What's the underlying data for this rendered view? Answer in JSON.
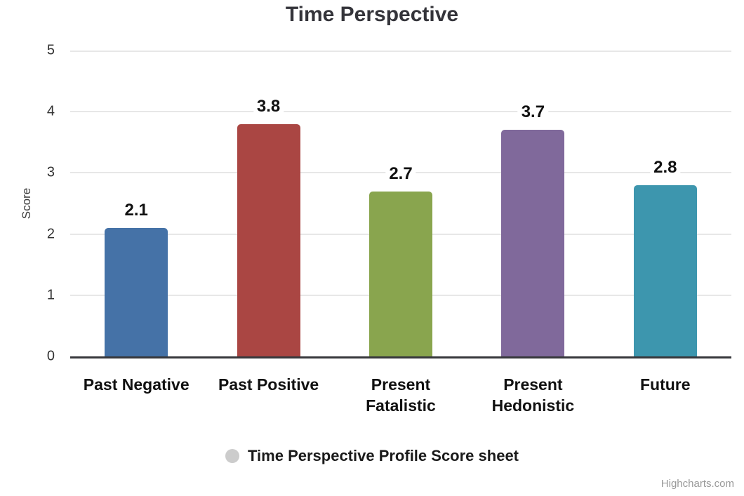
{
  "chart_data": {
    "type": "bar",
    "title": "Time Perspective",
    "ylabel": "Score",
    "xlabel": "",
    "ylim": [
      0,
      5
    ],
    "yticks": [
      0,
      1,
      2,
      3,
      4,
      5
    ],
    "grid": true,
    "categories": [
      "Past Negative",
      "Past Positive",
      "Present Fatalistic",
      "Present Hedonistic",
      "Future"
    ],
    "series": [
      {
        "name": "Time Perspective Profile Score sheet",
        "values": [
          2.1,
          3.8,
          2.7,
          3.7,
          2.8
        ]
      }
    ],
    "data_labels": [
      "2.1",
      "3.8",
      "2.7",
      "3.7",
      "2.8"
    ],
    "bar_colors": [
      "#4572A7",
      "#AA4643",
      "#89A54E",
      "#80699B",
      "#3D96AE"
    ],
    "legend_position": "bottom-center",
    "legend_marker_color": "#cccccc"
  },
  "legend": {
    "label": "Time Perspective Profile Score sheet"
  },
  "credits": {
    "label": "Highcharts.com"
  },
  "colors": {
    "grid": "#e7e7e7",
    "axis_line": "#37383c",
    "title_text": "#34343a",
    "credits_text": "#999999"
  }
}
